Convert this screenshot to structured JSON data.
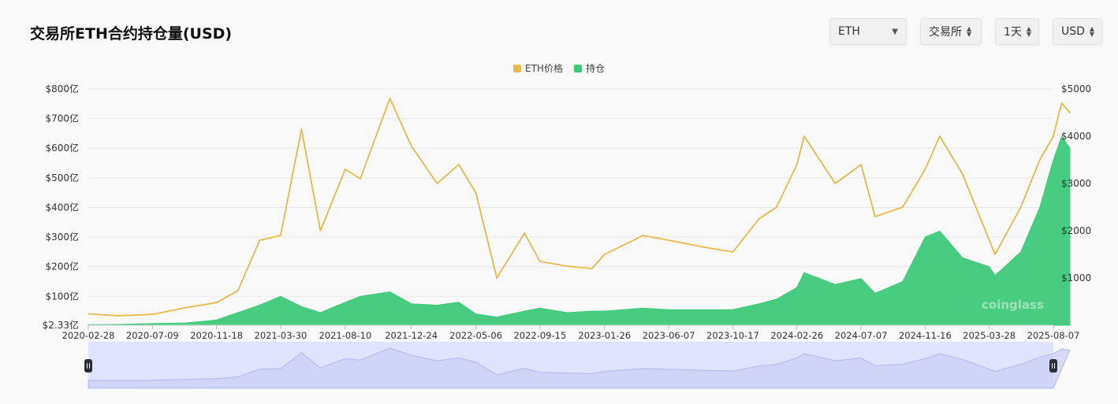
{
  "title": "交易所ETH合约持仓量(USD)",
  "controls": {
    "coin": "ETH",
    "exchange": "交易所",
    "interval": "1天",
    "currency": "USD"
  },
  "colors": {
    "price": "#e8b84a",
    "oi": "#3ec97a",
    "navigator_fill": "#dfe3fb",
    "navigator_line": "#b3b7ee",
    "grid": "#e9e9e9"
  },
  "watermark": "coinglass",
  "chart_data": {
    "type": "line",
    "legend": [
      "ETH价格",
      "持仓"
    ],
    "left_axis": {
      "ticks": [
        "$800亿",
        "$700亿",
        "$600亿",
        "$500亿",
        "$400亿",
        "$300亿",
        "$200亿",
        "$100亿",
        "$2.33亿"
      ],
      "values": [
        800,
        700,
        600,
        500,
        400,
        300,
        200,
        100,
        2.33
      ],
      "range": [
        2.33,
        800
      ],
      "unit": "亿 USD"
    },
    "right_axis": {
      "ticks": [
        "$5000",
        "$4000",
        "$3000",
        "$2000",
        "$1000"
      ],
      "values": [
        5000,
        4000,
        3000,
        2000,
        1000
      ],
      "range": [
        0,
        5000
      ]
    },
    "x_ticks": [
      "2020-02-28",
      "2020-07-09",
      "2020-11-18",
      "2021-03-30",
      "2021-08-10",
      "2021-12-24",
      "2022-05-06",
      "2022-09-15",
      "2023-01-26",
      "2023-06-07",
      "2023-10-17",
      "2024-02-26",
      "2024-07-07",
      "2024-11-16",
      "2025-03-28",
      "2025-08-07"
    ],
    "x": [
      "2020-02-28",
      "2020-05-01",
      "2020-07-09",
      "2020-09-15",
      "2020-11-18",
      "2021-01-01",
      "2021-02-15",
      "2021-03-30",
      "2021-05-12",
      "2021-06-20",
      "2021-08-10",
      "2021-09-10",
      "2021-11-10",
      "2021-12-24",
      "2022-02-15",
      "2022-04-01",
      "2022-05-06",
      "2022-06-18",
      "2022-08-14",
      "2022-09-15",
      "2022-11-10",
      "2022-12-31",
      "2023-01-26",
      "2023-04-15",
      "2023-06-07",
      "2023-08-20",
      "2023-10-17",
      "2023-12-10",
      "2024-01-15",
      "2024-02-26",
      "2024-03-12",
      "2024-05-15",
      "2024-07-07",
      "2024-08-05",
      "2024-10-01",
      "2024-11-16",
      "2024-12-16",
      "2025-02-01",
      "2025-03-28",
      "2025-04-09",
      "2025-06-01",
      "2025-07-10",
      "2025-08-07",
      "2025-08-24",
      "2025-09-10"
    ],
    "series": [
      {
        "name": "ETH价格",
        "axis": "right",
        "values": [
          240,
          200,
          230,
          370,
          480,
          730,
          1800,
          1900,
          4150,
          2000,
          3300,
          3100,
          4800,
          3800,
          3000,
          3400,
          2800,
          1000,
          1950,
          1350,
          1250,
          1200,
          1500,
          1900,
          1800,
          1650,
          1550,
          2250,
          2500,
          3400,
          4000,
          3000,
          3400,
          2300,
          2500,
          3300,
          4000,
          3200,
          1800,
          1500,
          2500,
          3500,
          4000,
          4700,
          4500
        ]
      },
      {
        "name": "持仓",
        "axis": "left",
        "values": [
          4,
          5,
          8,
          10,
          20,
          45,
          70,
          100,
          65,
          45,
          80,
          100,
          115,
          75,
          70,
          80,
          40,
          30,
          50,
          60,
          45,
          50,
          50,
          60,
          55,
          55,
          55,
          75,
          90,
          130,
          180,
          140,
          160,
          110,
          150,
          300,
          320,
          230,
          200,
          170,
          250,
          400,
          560,
          640,
          600
        ]
      }
    ]
  }
}
